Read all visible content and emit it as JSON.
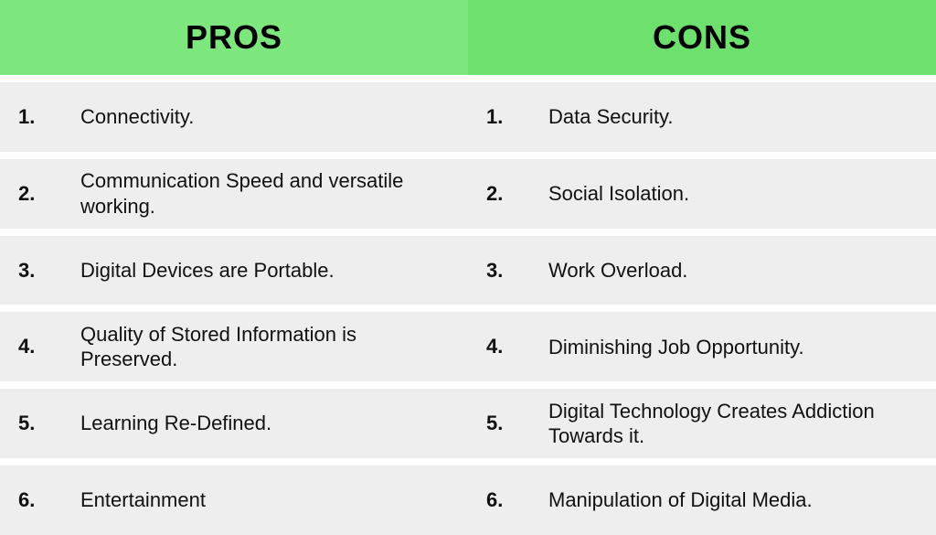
{
  "table": {
    "type": "comparison-table",
    "background_color": "#ffffff",
    "row_background": "#eeeeee",
    "row_gap_color": "#ffffff",
    "text_color": "#111111",
    "header_text_color": "#000000",
    "header_fontsize": 36,
    "body_fontsize": 22,
    "columns": [
      {
        "key": "pros",
        "title": "PROS",
        "header_bg": "#7de67d",
        "items": [
          "Connectivity.",
          "Communication Speed and versatile working.",
          "Digital Devices are Portable.",
          "Quality of Stored Information is Preserved.",
          "Learning Re-Defined.",
          "Entertainment"
        ]
      },
      {
        "key": "cons",
        "title": "CONS",
        "header_bg": "#6de06d",
        "items": [
          "Data Security.",
          "Social Isolation.",
          "Work Overload.",
          "Diminishing  Job Opportunity.",
          "Digital Technology Creates Addiction Towards it.",
          "Manipulation of Digital Media."
        ]
      }
    ]
  }
}
